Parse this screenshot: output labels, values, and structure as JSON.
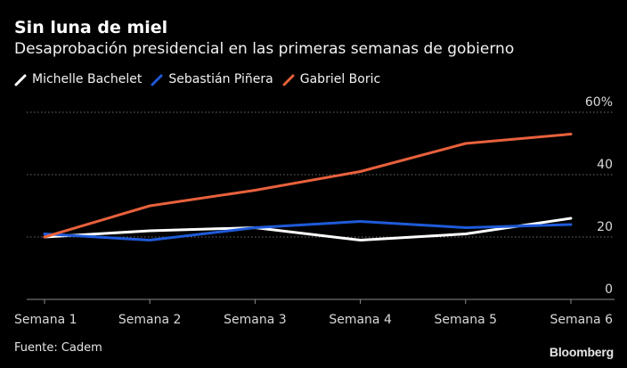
{
  "chart_data": {
    "type": "line",
    "title": "Sin luna de miel",
    "subtitle": "Desaprobación presidencial en las primeras semanas de gobierno",
    "categories": [
      "Semana 1",
      "Semana 2",
      "Semana 3",
      "Semana 4",
      "Semana 5",
      "Semana 6"
    ],
    "series": [
      {
        "name": "Michelle Bachelet",
        "color": "#ffffff",
        "values": [
          20,
          22,
          23,
          19,
          21,
          26
        ]
      },
      {
        "name": "Sebastián Piñera",
        "color": "#1f5ad8",
        "values": [
          21,
          19,
          23,
          25,
          23,
          24
        ]
      },
      {
        "name": "Gabriel Boric",
        "color": "#e8613c",
        "values": [
          20,
          30,
          35,
          41,
          50,
          53
        ]
      }
    ],
    "ylim": [
      0,
      60
    ],
    "yticks": [
      "0",
      "20",
      "40",
      "60%"
    ],
    "ytick_values": [
      0,
      20,
      40,
      60
    ],
    "grid": true,
    "legend_position": "top-left",
    "source": "Fuente: Cadem",
    "brand": "Bloomberg"
  }
}
